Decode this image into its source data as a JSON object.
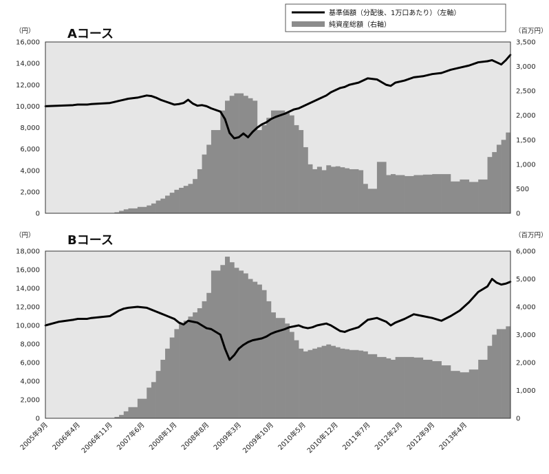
{
  "legend": {
    "line_label": "基準価額（分配後、1万口あたり）（左軸）",
    "area_label": "純資産総額（右軸）"
  },
  "colors": {
    "plot_bg": "#e6e6e6",
    "area": "#8c8c8c",
    "line": "#000000"
  },
  "x_tick_labels": [
    "2005年9月",
    "2006年4月",
    "2006年11月",
    "2007年6月",
    "2008年1月",
    "2008年8月",
    "2009年3月",
    "2009年10月",
    "2010年5月",
    "2010年12月",
    "2011年7月",
    "2012年2月",
    "2012年9月",
    "2013年4月"
  ],
  "chart_data": [
    {
      "type": "line",
      "title": "Aコース",
      "left_unit": "（円）",
      "right_unit": "（百万円）",
      "left_ylim": [
        0,
        16000
      ],
      "left_ticks": [
        "0",
        "2,000",
        "4,000",
        "6,000",
        "8,000",
        "10,000",
        "12,000",
        "14,000",
        "16,000"
      ],
      "right_ylim": [
        0,
        3500
      ],
      "right_ticks": [
        "0",
        "500",
        "1,000",
        "1,500",
        "2,000",
        "2,500",
        "3,000",
        "3,500"
      ],
      "x_months": [
        0,
        3,
        6,
        7,
        9,
        10,
        12,
        14,
        15,
        16,
        17,
        18,
        20,
        22,
        23,
        24,
        25,
        26,
        27,
        28,
        29,
        30,
        31,
        32,
        33,
        34,
        35,
        36,
        38,
        39,
        40,
        41,
        42,
        43,
        44,
        45,
        46,
        47,
        48,
        49,
        50,
        52,
        53,
        54,
        55,
        56,
        57,
        58,
        59,
        60,
        61,
        62,
        63,
        64,
        65,
        66,
        68,
        69,
        70,
        72,
        74,
        75,
        76,
        78,
        80,
        82,
        84,
        86,
        88,
        90,
        92,
        94,
        96,
        97,
        98,
        99,
        100,
        101
      ],
      "series": [
        {
          "name": "基準価額（分配後、1万口あたり）（左軸）",
          "axis": "left",
          "values": [
            10000,
            10050,
            10100,
            10150,
            10150,
            10200,
            10250,
            10300,
            10400,
            10500,
            10600,
            10700,
            10800,
            11000,
            10950,
            10800,
            10600,
            10450,
            10300,
            10150,
            10200,
            10300,
            10600,
            10250,
            10050,
            10100,
            10000,
            9800,
            9500,
            8800,
            7500,
            7000,
            7100,
            7450,
            7100,
            7600,
            8000,
            8300,
            8500,
            8800,
            9000,
            9300,
            9500,
            9700,
            9800,
            10000,
            10200,
            10400,
            10600,
            10800,
            11000,
            11300,
            11500,
            11700,
            11800,
            12000,
            12200,
            12400,
            12600,
            12500,
            12000,
            11900,
            12200,
            12400,
            12700,
            12800,
            13000,
            13100,
            13400,
            13600,
            13800,
            14100,
            14200,
            14300,
            14100,
            13900,
            14300,
            14800
          ]
        },
        {
          "name": "純資産総額（右軸）",
          "axis": "right",
          "values": [
            0,
            0,
            0,
            0,
            0,
            0,
            0,
            0,
            20,
            50,
            80,
            100,
            130,
            160,
            200,
            260,
            300,
            360,
            420,
            480,
            520,
            560,
            600,
            700,
            900,
            1200,
            1400,
            1700,
            2100,
            2300,
            2400,
            2450,
            2450,
            2400,
            2350,
            2300,
            1700,
            1800,
            1950,
            2100,
            2100,
            2050,
            2000,
            1800,
            1700,
            1350,
            1000,
            900,
            950,
            880,
            980,
            950,
            960,
            940,
            920,
            900,
            880,
            600,
            500,
            1050,
            780,
            800,
            780,
            760,
            780,
            790,
            800,
            800,
            650,
            690,
            640,
            690,
            1150,
            1250,
            1400,
            1500,
            1650,
            1800
          ]
        }
      ]
    },
    {
      "type": "line",
      "title": "Bコース",
      "left_unit": "（円）",
      "right_unit": "（百万円）",
      "left_ylim": [
        0,
        18000
      ],
      "left_ticks": [
        "0",
        "2,000",
        "4,000",
        "6,000",
        "8,000",
        "10,000",
        "12,000",
        "14,000",
        "16,000",
        "18,000"
      ],
      "right_ylim": [
        0,
        6000
      ],
      "right_ticks": [
        "0",
        "1,000",
        "2,000",
        "3,000",
        "4,000",
        "5,000",
        "6,000"
      ],
      "x_months": [
        0,
        3,
        6,
        7,
        9,
        10,
        12,
        14,
        15,
        16,
        17,
        18,
        20,
        22,
        23,
        24,
        25,
        26,
        27,
        28,
        29,
        30,
        31,
        32,
        33,
        34,
        35,
        36,
        38,
        39,
        40,
        41,
        42,
        43,
        44,
        45,
        46,
        47,
        48,
        49,
        50,
        52,
        53,
        54,
        55,
        56,
        57,
        58,
        59,
        60,
        61,
        62,
        63,
        64,
        65,
        66,
        68,
        69,
        70,
        72,
        74,
        75,
        76,
        78,
        80,
        82,
        84,
        86,
        88,
        90,
        92,
        94,
        96,
        97,
        98,
        99,
        100,
        101
      ],
      "series": [
        {
          "name": "基準価額（分配後、1万口あたり）（左軸）",
          "axis": "left",
          "values": [
            10000,
            10400,
            10600,
            10700,
            10700,
            10800,
            10900,
            11000,
            11300,
            11600,
            11800,
            11900,
            12000,
            11900,
            11700,
            11500,
            11300,
            11100,
            10900,
            10700,
            10300,
            10100,
            10500,
            10400,
            10300,
            10000,
            9700,
            9600,
            9000,
            7500,
            6300,
            6800,
            7500,
            7900,
            8200,
            8400,
            8500,
            8600,
            8800,
            9100,
            9300,
            9600,
            9800,
            9900,
            10000,
            9800,
            9700,
            9800,
            10000,
            10100,
            10200,
            10000,
            9700,
            9400,
            9300,
            9500,
            9800,
            10200,
            10600,
            10800,
            10400,
            10000,
            10300,
            10700,
            11200,
            11000,
            10800,
            10500,
            11000,
            11600,
            12500,
            13600,
            14200,
            15000,
            14600,
            14400,
            14500,
            14700
          ]
        },
        {
          "name": "純資産総額（右軸）",
          "axis": "right",
          "values": [
            0,
            0,
            0,
            0,
            0,
            0,
            0,
            0,
            50,
            120,
            250,
            400,
            700,
            1100,
            1300,
            1700,
            2100,
            2500,
            2900,
            3200,
            3400,
            3500,
            3650,
            3800,
            3950,
            4200,
            4500,
            5300,
            5500,
            5800,
            5600,
            5400,
            5300,
            5200,
            5000,
            4900,
            4800,
            4600,
            4200,
            3800,
            3600,
            3400,
            3100,
            2800,
            2500,
            2400,
            2450,
            2500,
            2550,
            2600,
            2650,
            2600,
            2550,
            2500,
            2480,
            2450,
            2430,
            2400,
            2300,
            2200,
            2150,
            2100,
            2200,
            2200,
            2180,
            2100,
            2050,
            1900,
            1700,
            1650,
            1750,
            2100,
            2600,
            3000,
            3200,
            3200,
            3300,
            3250
          ]
        }
      ]
    }
  ]
}
